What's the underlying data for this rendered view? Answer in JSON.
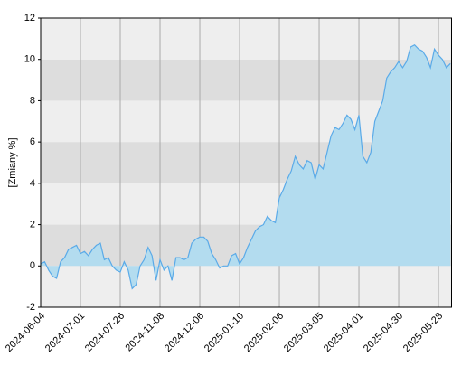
{
  "chart_data": {
    "type": "area",
    "y_label": "[Zmiany %]",
    "categories": [
      "2024-06-04",
      null,
      null,
      null,
      null,
      null,
      null,
      null,
      null,
      null,
      "2024-07-01",
      null,
      null,
      null,
      null,
      null,
      null,
      null,
      null,
      null,
      "2024-07-26",
      null,
      null,
      null,
      null,
      null,
      null,
      null,
      null,
      null,
      "2024-11-08",
      null,
      null,
      null,
      null,
      null,
      null,
      null,
      null,
      null,
      "2024-12-06",
      null,
      null,
      null,
      null,
      null,
      null,
      null,
      null,
      null,
      "2025-01-10",
      null,
      null,
      null,
      null,
      null,
      null,
      null,
      null,
      null,
      "2025-02-06",
      null,
      null,
      null,
      null,
      null,
      null,
      null,
      null,
      null,
      "2025-03-05",
      null,
      null,
      null,
      null,
      null,
      null,
      null,
      null,
      null,
      "2025-04-01",
      null,
      null,
      null,
      null,
      null,
      null,
      null,
      null,
      null,
      "2025-04-30",
      null,
      null,
      null,
      null,
      null,
      null,
      null,
      null,
      null,
      "2025-05-28",
      null,
      null,
      null
    ],
    "values": [
      0.1,
      0.2,
      -0.2,
      -0.5,
      -0.6,
      0.2,
      0.4,
      0.8,
      0.9,
      1.0,
      0.6,
      0.7,
      0.5,
      0.8,
      1.0,
      1.1,
      0.3,
      0.4,
      0.0,
      -0.2,
      -0.3,
      0.2,
      -0.2,
      -1.1,
      -0.9,
      0.0,
      0.3,
      0.9,
      0.5,
      -0.7,
      0.3,
      -0.2,
      0.0,
      -0.7,
      0.4,
      0.4,
      0.3,
      0.4,
      1.1,
      1.3,
      1.4,
      1.4,
      1.2,
      0.6,
      0.3,
      -0.1,
      0.0,
      0.0,
      0.5,
      0.6,
      0.1,
      0.4,
      0.9,
      1.3,
      1.7,
      1.9,
      2.0,
      2.4,
      2.2,
      2.1,
      3.3,
      3.7,
      4.2,
      4.6,
      5.3,
      4.9,
      4.7,
      5.1,
      5.0,
      4.2,
      4.9,
      4.7,
      5.5,
      6.3,
      6.7,
      6.6,
      6.9,
      7.3,
      7.1,
      6.6,
      7.3,
      5.3,
      5.0,
      5.5,
      7.0,
      7.5,
      8.0,
      9.1,
      9.4,
      9.6,
      9.9,
      9.6,
      9.9,
      10.6,
      10.7,
      10.5,
      10.4,
      10.1,
      9.6,
      10.5,
      10.2,
      10.0,
      9.6,
      9.8
    ],
    "color": "#5aaae8",
    "fill_color": "#b3dcef",
    "band_colors": [
      "#eeeeee",
      "#dddddd"
    ],
    "ylim": [
      -2,
      12
    ],
    "yticks": [
      -2,
      0,
      2,
      4,
      6,
      8,
      10,
      12
    ],
    "grid": true
  }
}
